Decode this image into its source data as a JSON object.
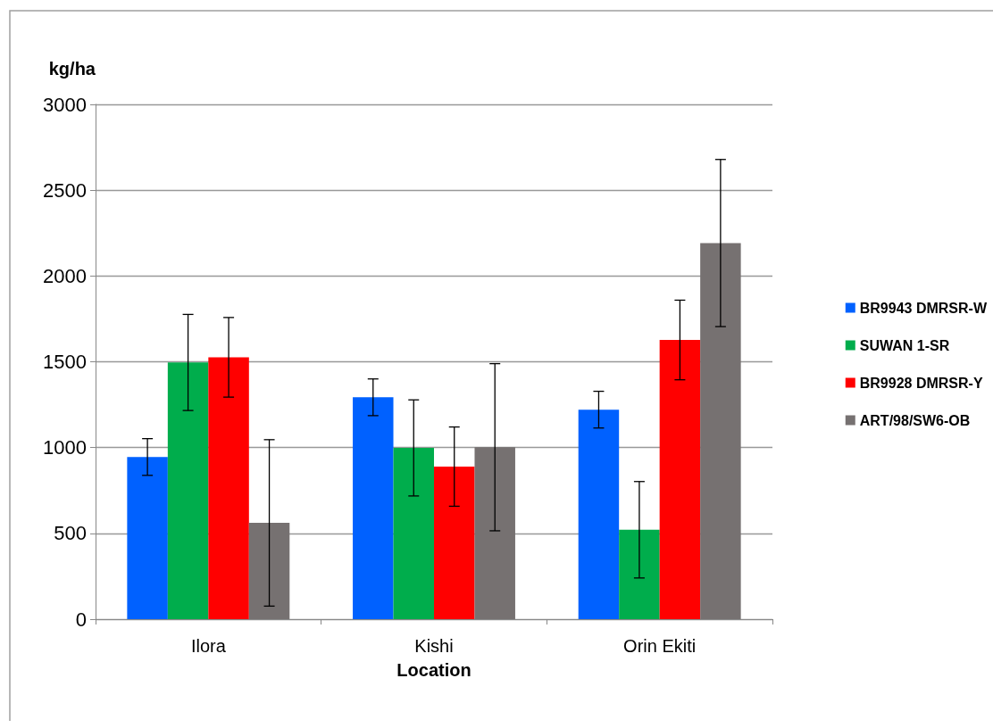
{
  "chart_data": {
    "type": "bar",
    "ylabel": "kg/ha",
    "xlabel": "Location",
    "categories": [
      "Ilora",
      "Kishi",
      "Orin Ekiti"
    ],
    "series": [
      {
        "name": "BR9943 DMRSR-W",
        "color": "#0061ff",
        "values": [
          945,
          1293,
          1221
        ],
        "errors": [
          107,
          107,
          107
        ]
      },
      {
        "name": "SUWAN 1-SR",
        "color": "#00ad4c",
        "values": [
          1496,
          998,
          521
        ],
        "errors": [
          280,
          280,
          281
        ]
      },
      {
        "name": "BR9928 DMRSR-Y",
        "color": "#ff0000",
        "values": [
          1526,
          889,
          1627
        ],
        "errors": [
          232,
          231,
          232
        ]
      },
      {
        "name": "ART/98/SW6-OB",
        "color": "#767171",
        "values": [
          561,
          1002,
          2192
        ],
        "errors": [
          485,
          487,
          487
        ]
      }
    ],
    "ylim": [
      0,
      3000
    ],
    "yticks": [
      0,
      500,
      1000,
      1500,
      2000,
      2500,
      3000
    ],
    "grid": "y",
    "legend": "right"
  }
}
